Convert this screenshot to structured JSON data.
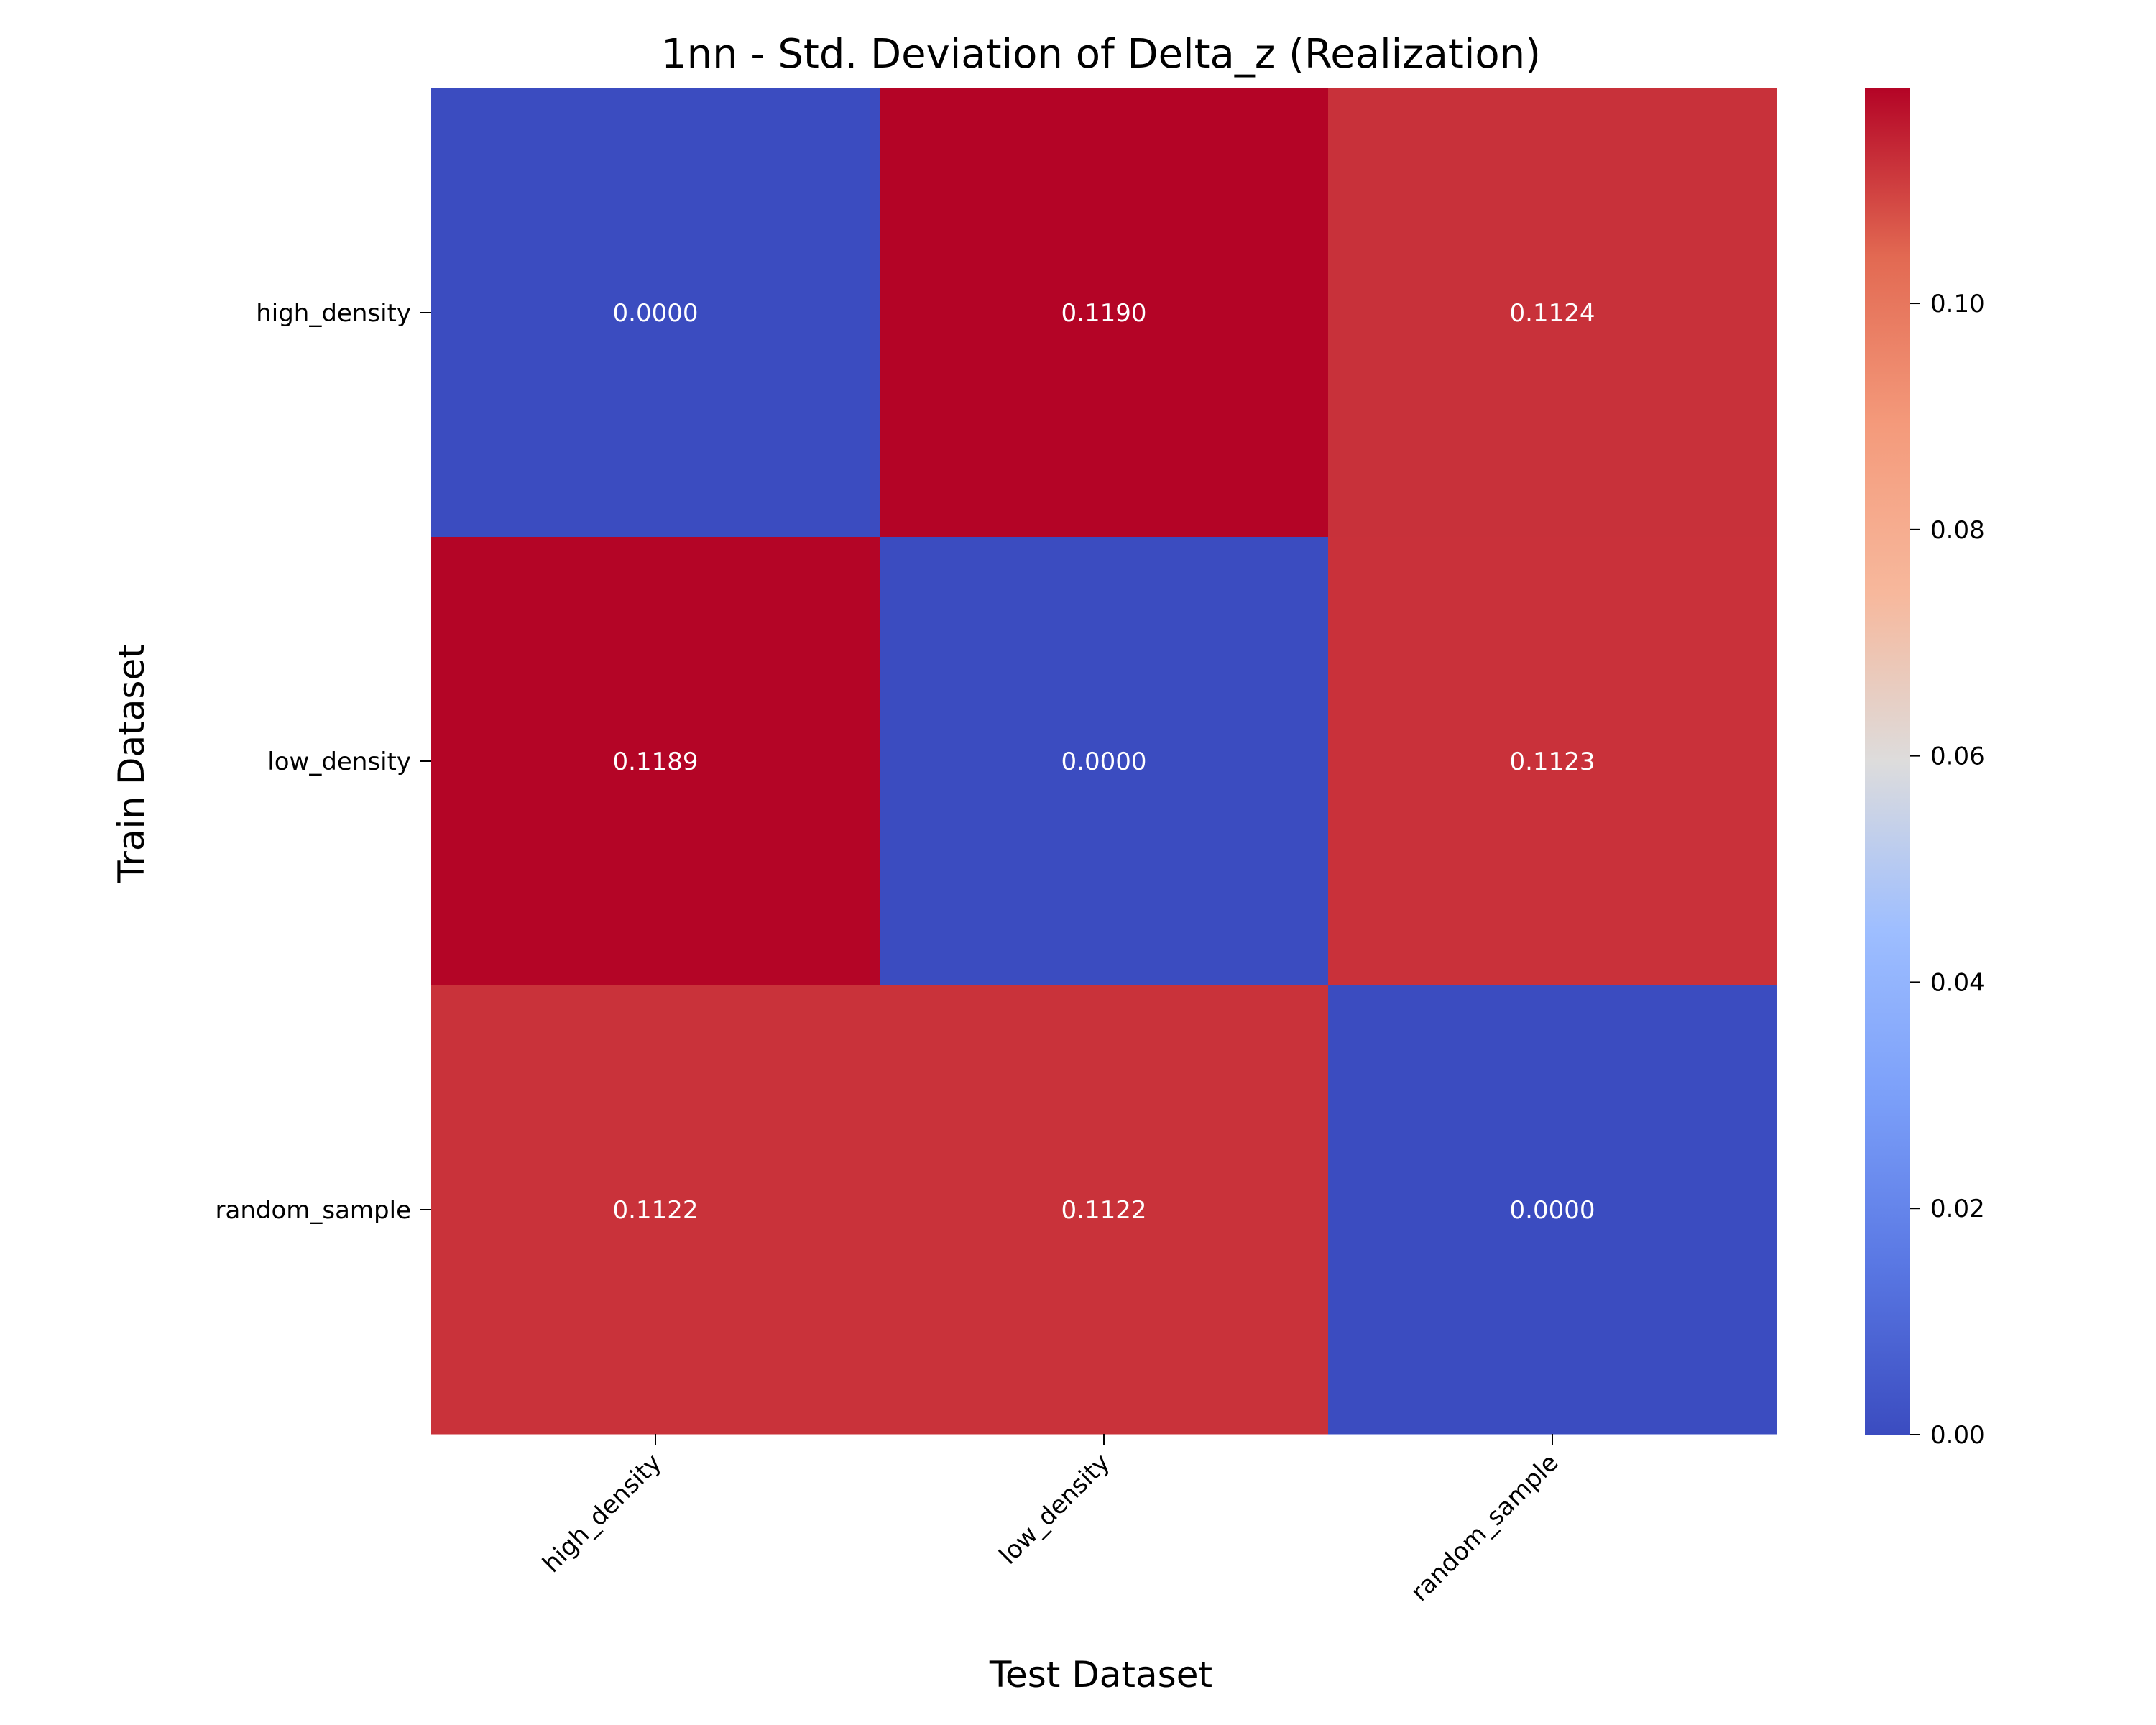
{
  "chart_data": {
    "type": "heatmap",
    "title": "1nn - Std. Deviation of Delta_z (Realization)",
    "xlabel": "Test Dataset",
    "ylabel": "Train Dataset",
    "x_categories": [
      "high_density",
      "low_density",
      "random_sample"
    ],
    "y_categories": [
      "high_density",
      "low_density",
      "random_sample"
    ],
    "values": [
      [
        0.0,
        0.119,
        0.1124
      ],
      [
        0.1189,
        0.0,
        0.1123
      ],
      [
        0.1122,
        0.1122,
        0.0
      ]
    ],
    "value_format": "4 decimals",
    "colormap": "coolwarm",
    "colorbar": {
      "vmin": 0.0,
      "vmax": 0.119,
      "ticks": [
        0.0,
        0.02,
        0.04,
        0.06,
        0.08,
        0.1
      ],
      "tick_labels": [
        "0.00",
        "0.02",
        "0.04",
        "0.06",
        "0.08",
        "0.10"
      ]
    },
    "annotation_color": "#ffffff"
  }
}
